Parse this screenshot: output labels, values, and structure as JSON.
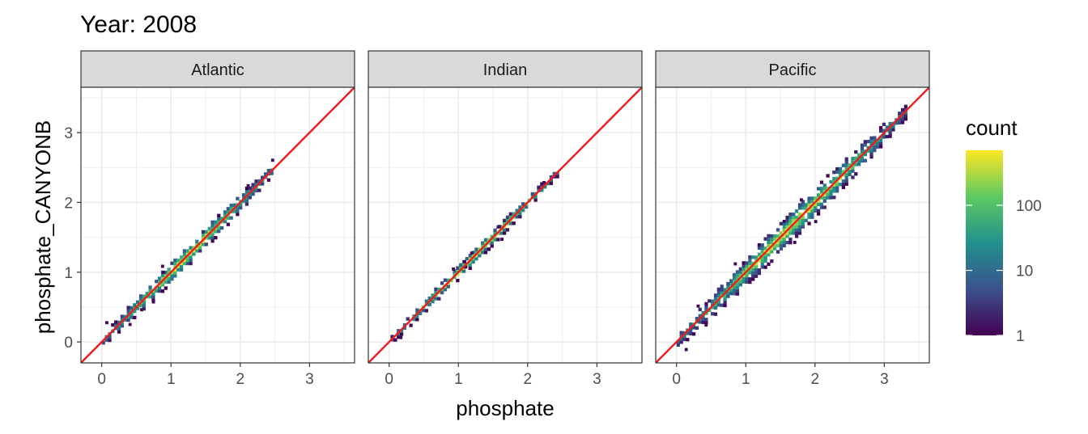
{
  "chart_data": {
    "type": "heatmap",
    "title": "Year: 2008",
    "xlabel": "phosphate",
    "ylabel": "phosphate_CANYONB",
    "xlim": [
      -0.3,
      3.65
    ],
    "ylim": [
      -0.3,
      3.65
    ],
    "x_ticks": [
      "0",
      "1",
      "2",
      "3"
    ],
    "y_ticks": [
      "0",
      "1",
      "2",
      "3"
    ],
    "reference_line": {
      "slope": 1,
      "intercept": 0,
      "color": "#ee1c1c"
    },
    "grid": true,
    "legend": {
      "title": "count",
      "placement": "right",
      "scale": "log10",
      "range": [
        1,
        700
      ],
      "ticks": [
        "1",
        "10",
        "100"
      ],
      "colormap": [
        "#440154",
        "#3b528b",
        "#21918c",
        "#5ec962",
        "#fde725"
      ]
    },
    "panels": [
      {
        "name": "Atlantic",
        "x_range": [
          0.0,
          2.45
        ],
        "max_spread": 0.13
      },
      {
        "name": "Indian",
        "x_range": [
          0.02,
          2.42
        ],
        "max_spread": 0.09
      },
      {
        "name": "Pacific",
        "x_range": [
          0.0,
          3.3
        ],
        "max_spread": 0.18
      }
    ]
  }
}
